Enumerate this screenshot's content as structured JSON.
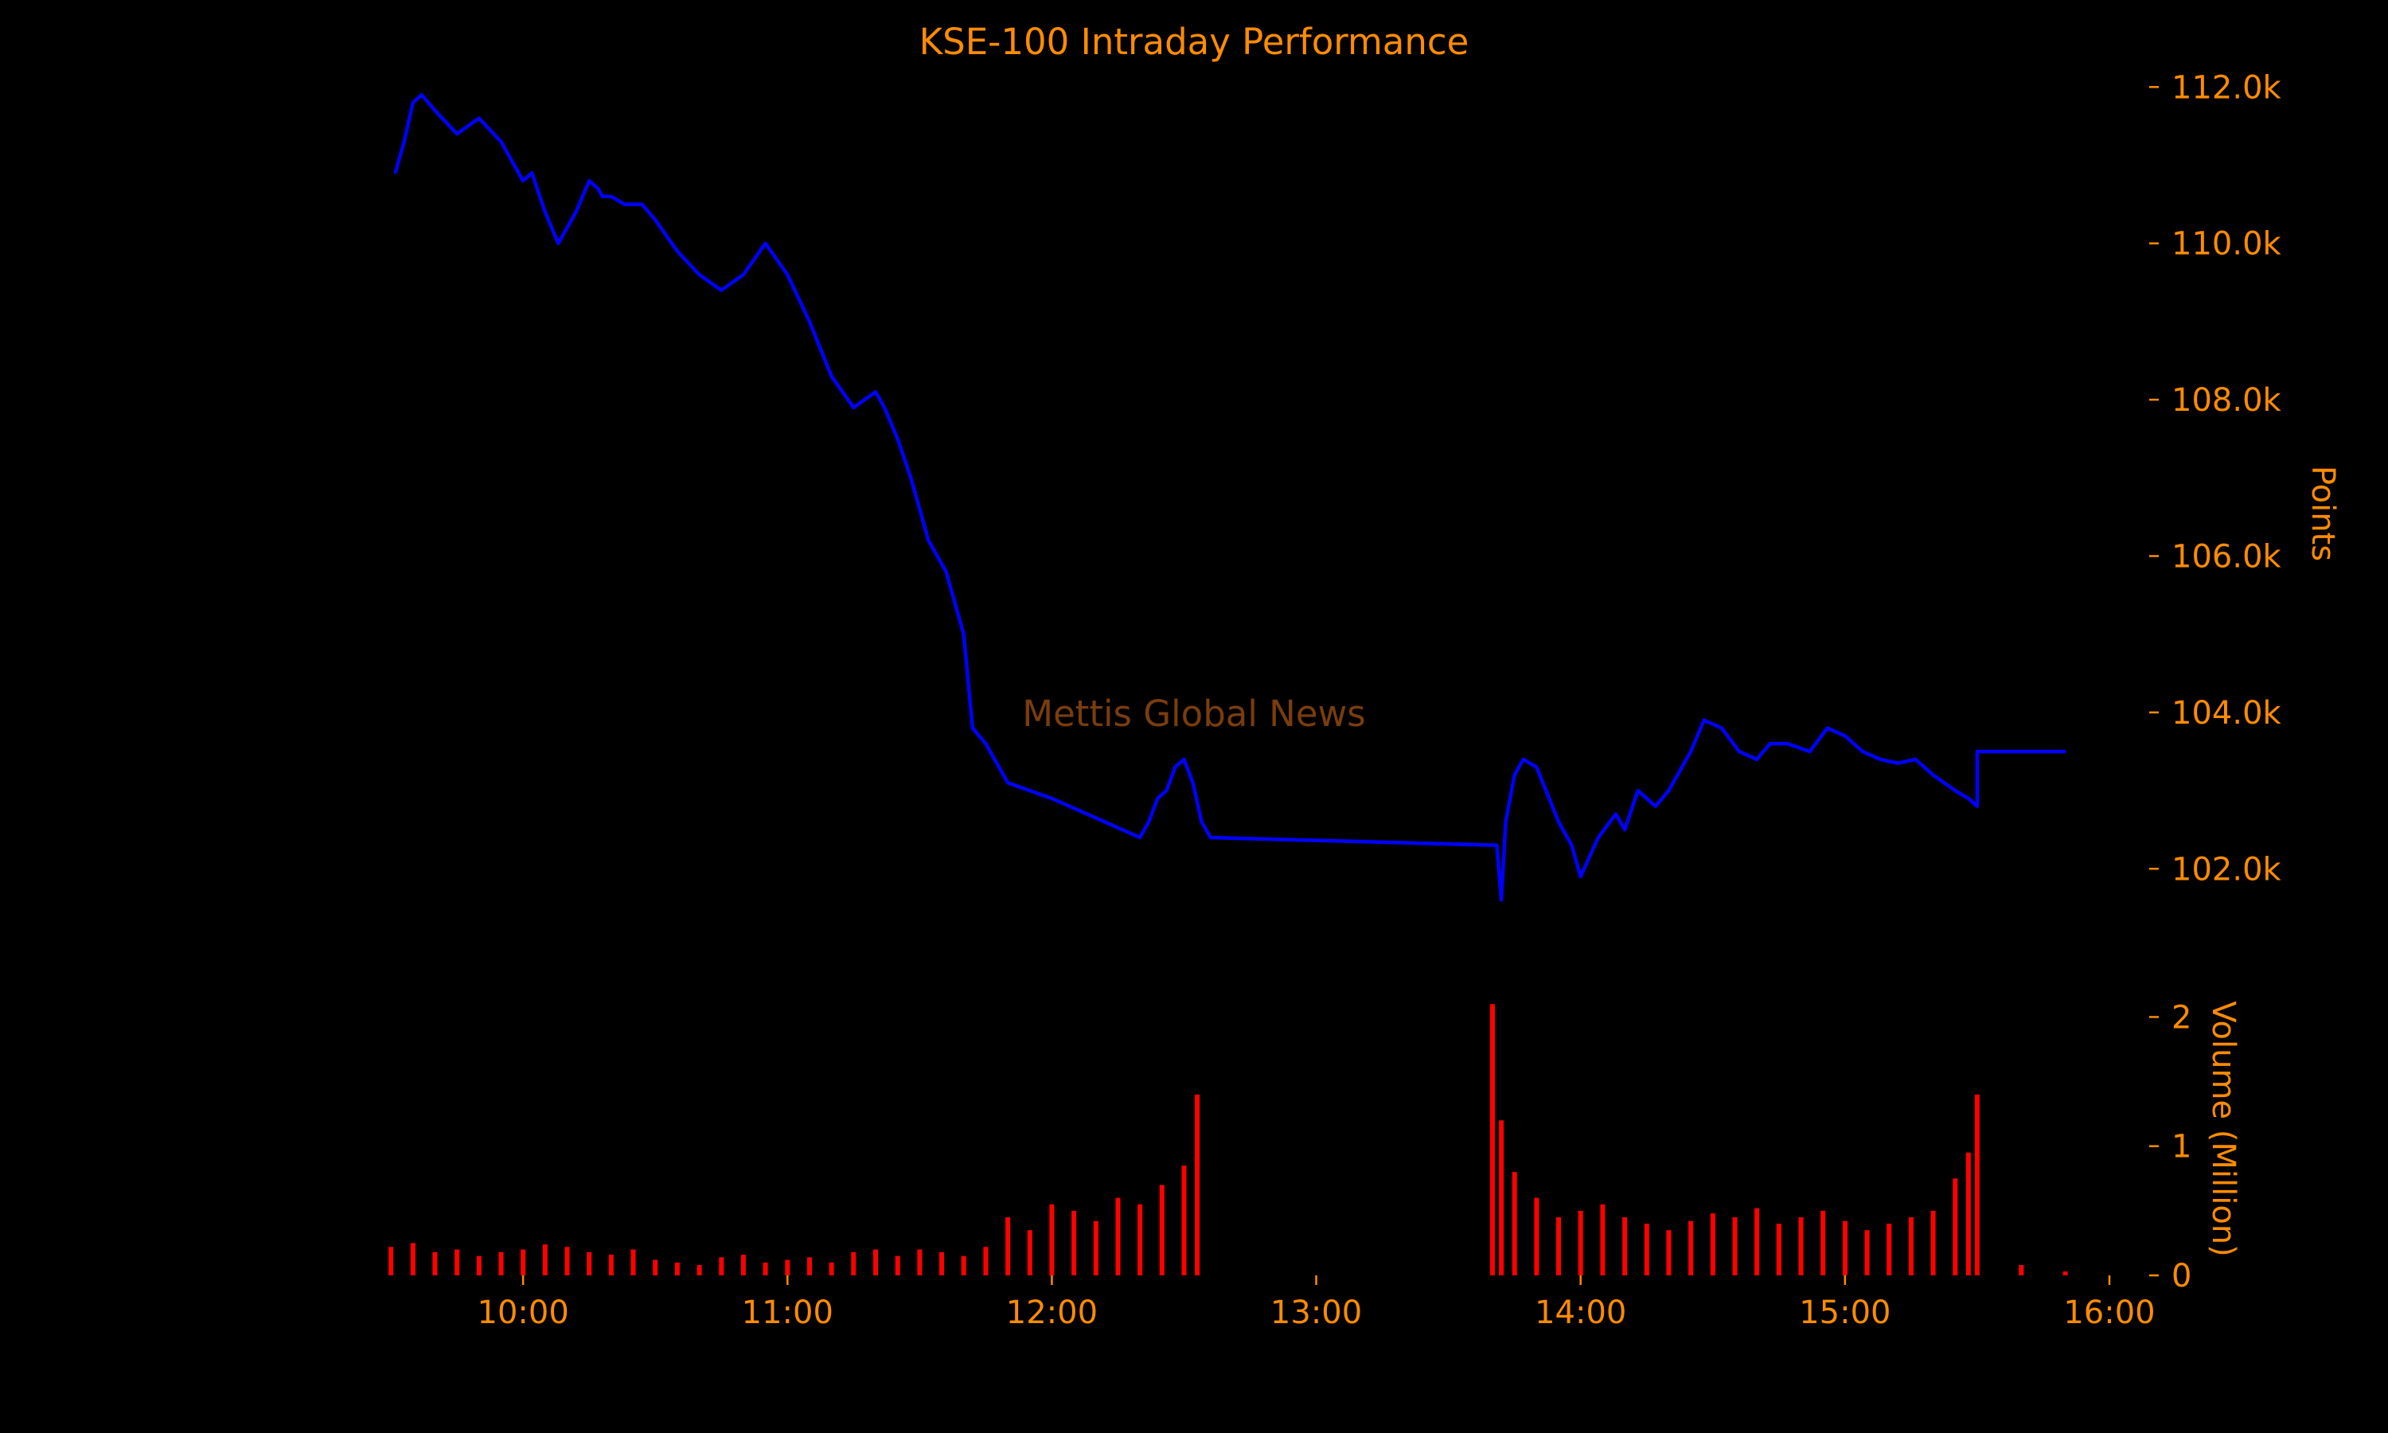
{
  "chart_data": {
    "type": "line",
    "title": "KSE-100 Intraday Performance",
    "watermark": "Mettis Global News",
    "colors": {
      "background": "#000000",
      "text": "#ff8c00",
      "price_line": "#0000ff",
      "volume_bars": "#ff0000",
      "watermark": "#7a3d0c"
    },
    "x_axis": {
      "label": "",
      "unit": "time of day",
      "range": [
        "09:28",
        "16:00"
      ],
      "ticks": [
        "10:00",
        "11:00",
        "12:00",
        "13:00",
        "14:00",
        "15:00",
        "16:00"
      ]
    },
    "price_axis": {
      "label": "Points",
      "side": "right",
      "range": [
        101300,
        112400
      ],
      "ticks": [
        102000,
        104000,
        106000,
        108000,
        110000,
        112000
      ],
      "tick_labels": [
        "102.0k",
        "104.0k",
        "106.0k",
        "108.0k",
        "110.0k",
        "112.0k"
      ]
    },
    "volume_axis": {
      "label": "Volume (Million)",
      "side": "right",
      "range": [
        0,
        2.2
      ],
      "ticks": [
        0,
        1,
        2
      ],
      "tick_labels": [
        "0",
        "1",
        "2"
      ]
    },
    "grid": false,
    "legend": "none",
    "series": [
      {
        "kind": "price",
        "x": [
          "09:31",
          "09:33",
          "09:35",
          "09:37",
          "09:40",
          "09:45",
          "09:50",
          "09:55",
          "10:00",
          "10:02",
          "10:05",
          "10:08",
          "10:12",
          "10:15",
          "10:17",
          "10:18",
          "10:20",
          "10:23",
          "10:25",
          "10:27",
          "10:30",
          "10:35",
          "10:40",
          "10:45",
          "10:50",
          "10:55",
          "11:00",
          "11:05",
          "11:10",
          "11:15",
          "11:20",
          "11:22",
          "11:25",
          "11:28",
          "11:32",
          "11:36",
          "11:40",
          "11:42",
          "11:45",
          "11:50",
          "11:55",
          "12:00",
          "12:04",
          "12:08",
          "12:12",
          "12:16",
          "12:20",
          "12:22",
          "12:24",
          "12:26",
          "12:28",
          "12:30",
          "12:32",
          "12:34",
          "12:36",
          "13:41",
          "13:42",
          "13:43",
          "13:45",
          "13:47",
          "13:50",
          "13:55",
          "13:58",
          "14:00",
          "14:04",
          "14:08",
          "14:10",
          "14:13",
          "14:17",
          "14:20",
          "14:25",
          "14:28",
          "14:32",
          "14:36",
          "14:40",
          "14:43",
          "14:47",
          "14:52",
          "14:56",
          "15:00",
          "15:04",
          "15:08",
          "15:12",
          "15:16",
          "15:20",
          "15:25",
          "15:28",
          "15:30",
          "15:30",
          "15:50"
        ],
        "values": [
          110900,
          111300,
          111800,
          111900,
          111700,
          111400,
          111600,
          111300,
          110800,
          110900,
          110400,
          110000,
          110400,
          110800,
          110700,
          110600,
          110600,
          110500,
          110500,
          110500,
          110300,
          109900,
          109600,
          109400,
          109600,
          110000,
          109600,
          109000,
          108300,
          107900,
          108100,
          107900,
          107500,
          107000,
          106200,
          105800,
          105000,
          103800,
          103600,
          103100,
          103000,
          102900,
          102800,
          102700,
          102600,
          102500,
          102400,
          102600,
          102900,
          103000,
          103300,
          103400,
          103100,
          102600,
          102400,
          102300,
          101600,
          102600,
          103200,
          103400,
          103300,
          102600,
          102300,
          101900,
          102400,
          102700,
          102500,
          103000,
          102800,
          103000,
          103500,
          103900,
          103800,
          103500,
          103400,
          103600,
          103600,
          103500,
          103800,
          103700,
          103500,
          103400,
          103350,
          103400,
          103200,
          103000,
          102900,
          102800,
          103500,
          103500
        ]
      },
      {
        "kind": "volume",
        "x": [
          "09:30",
          "09:35",
          "09:40",
          "09:45",
          "09:50",
          "09:55",
          "10:00",
          "10:05",
          "10:10",
          "10:15",
          "10:20",
          "10:25",
          "10:30",
          "10:35",
          "10:40",
          "10:45",
          "10:50",
          "10:55",
          "11:00",
          "11:05",
          "11:10",
          "11:15",
          "11:20",
          "11:25",
          "11:30",
          "11:35",
          "11:40",
          "11:45",
          "11:50",
          "11:55",
          "12:00",
          "12:05",
          "12:10",
          "12:15",
          "12:20",
          "12:25",
          "12:30",
          "12:33",
          "13:40",
          "13:42",
          "13:45",
          "13:50",
          "13:55",
          "14:00",
          "14:05",
          "14:10",
          "14:15",
          "14:20",
          "14:25",
          "14:30",
          "14:35",
          "14:40",
          "14:45",
          "14:50",
          "14:55",
          "15:00",
          "15:05",
          "15:10",
          "15:15",
          "15:20",
          "15:25",
          "15:28",
          "15:30",
          "15:40",
          "15:50"
        ],
        "values": [
          0.22,
          0.25,
          0.18,
          0.2,
          0.15,
          0.18,
          0.2,
          0.24,
          0.22,
          0.18,
          0.16,
          0.2,
          0.12,
          0.1,
          0.08,
          0.14,
          0.16,
          0.1,
          0.12,
          0.14,
          0.1,
          0.18,
          0.2,
          0.15,
          0.2,
          0.18,
          0.15,
          0.22,
          0.45,
          0.35,
          0.55,
          0.5,
          0.42,
          0.6,
          0.55,
          0.7,
          0.85,
          1.4,
          2.1,
          1.2,
          0.8,
          0.6,
          0.45,
          0.5,
          0.55,
          0.45,
          0.4,
          0.35,
          0.42,
          0.48,
          0.45,
          0.52,
          0.4,
          0.45,
          0.5,
          0.42,
          0.35,
          0.4,
          0.45,
          0.5,
          0.75,
          0.95,
          1.4,
          0.08,
          0.03
        ]
      }
    ]
  }
}
